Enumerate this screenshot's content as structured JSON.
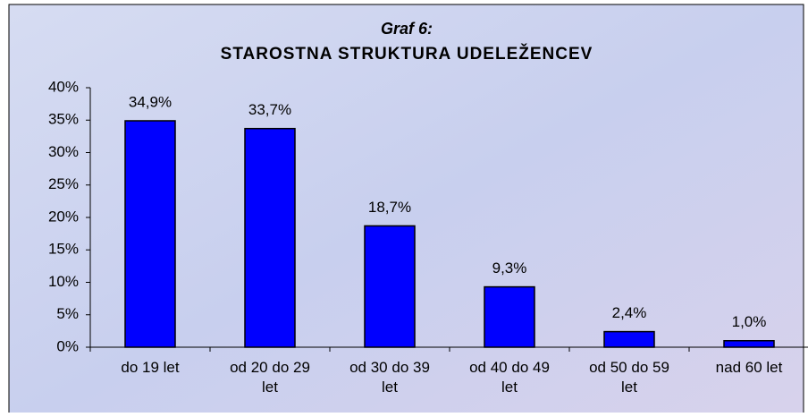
{
  "chart_data": {
    "type": "bar",
    "title": "Graf 6:",
    "subtitle": "STAROSTNA STRUKTURA UDELEŽENCEV",
    "categories": [
      "do 19 let",
      "od 20 do 29 let",
      "od 30 do 39 let",
      "od 40 do 49 let",
      "od 50 do 59 let",
      "nad 60 let"
    ],
    "values": [
      34.9,
      33.7,
      18.7,
      9.3,
      2.4,
      1.0
    ],
    "value_labels": [
      "34,9%",
      "33,7%",
      "18,7%",
      "9,3%",
      "2,4%",
      "1,0%"
    ],
    "color": "#0000ff",
    "ylim": [
      0,
      40
    ],
    "yticks": [
      {
        "value": 0,
        "label": "0%"
      },
      {
        "value": 5,
        "label": "5%"
      },
      {
        "value": 10,
        "label": "10%"
      },
      {
        "value": 15,
        "label": "15%"
      },
      {
        "value": 20,
        "label": "20%"
      },
      {
        "value": 25,
        "label": "25%"
      },
      {
        "value": 30,
        "label": "30%"
      },
      {
        "value": 35,
        "label": "35%"
      },
      {
        "value": 40,
        "label": "40%"
      }
    ],
    "grid": false
  }
}
